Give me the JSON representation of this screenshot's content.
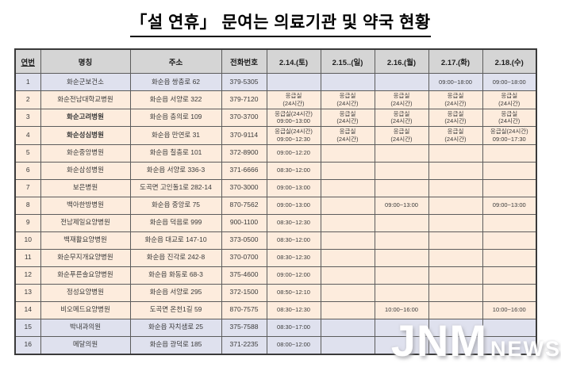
{
  "title": "「설 연휴」 문여는 의료기관 및 약국 현황",
  "watermark": {
    "main": "JNM",
    "sub": "NEWS"
  },
  "colors": {
    "header_bg": "#d5d5d5",
    "blue_row_bg": "#dfe1ee",
    "peach_row_bg": "#fdecdd",
    "border": "#5c5c5c"
  },
  "table": {
    "headers": [
      "연번",
      "명칭",
      "주소",
      "전화번호",
      "2.14.(토)",
      "2.15..(일)",
      "2.16.(월)",
      "2.17.(화)",
      "2.18.(수)"
    ],
    "rows": [
      {
        "no": "1",
        "name": "화순군보건소",
        "bold": false,
        "tone": "blue",
        "address": "화순읍 쌍충로 62",
        "phone": "379-5305",
        "schedule": [
          "",
          "",
          "",
          "09:00~18:00",
          "09:00~18:00"
        ]
      },
      {
        "no": "2",
        "name": "화순전남대학교병원",
        "bold": false,
        "tone": "peach",
        "address": "화순읍 서양로 322",
        "phone": "379-7120",
        "schedule": [
          "응급실\n(24시간)",
          "응급실\n(24시간)",
          "응급실\n(24시간)",
          "응급실\n(24시간)",
          "응급실\n(24시간)"
        ]
      },
      {
        "no": "3",
        "name": "화순고려병원",
        "bold": true,
        "tone": "peach",
        "address": "화순읍 충의로 109",
        "phone": "370-3700",
        "schedule": [
          "응급실(24시간)\n09:00~13:00",
          "응급실\n(24시간)",
          "응급실\n(24시간)",
          "응급실\n(24시간)",
          "응급실\n(24시간)"
        ]
      },
      {
        "no": "4",
        "name": "화순성심병원",
        "bold": true,
        "tone": "peach",
        "address": "화순읍 만연로 31",
        "phone": "370-9114",
        "schedule": [
          "응급실(24시간)\n09:00~12:30",
          "응급실\n(24시간)",
          "응급실\n(24시간)",
          "응급실\n(24시간)",
          "응급실(24시간)\n09:00~17:30"
        ]
      },
      {
        "no": "5",
        "name": "화순중앙병원",
        "bold": false,
        "tone": "peach",
        "address": "화순읍 칠충로 101",
        "phone": "372-8900",
        "schedule": [
          "09:00~12:20",
          "",
          "",
          "",
          ""
        ]
      },
      {
        "no": "6",
        "name": "화순삼성병원",
        "bold": false,
        "tone": "peach",
        "address": "화순읍 서양로 336-3",
        "phone": "371-6666",
        "schedule": [
          "08:30~12:00",
          "",
          "",
          "",
          ""
        ]
      },
      {
        "no": "7",
        "name": "보은병원",
        "bold": false,
        "tone": "peach",
        "address": "도곡면 고인돌1로 282-14",
        "phone": "370-3000",
        "schedule": [
          "09:00~13:00",
          "",
          "",
          "",
          ""
        ]
      },
      {
        "no": "8",
        "name": "백아한방병원",
        "bold": false,
        "tone": "peach",
        "address": "화순읍 중앙로 75",
        "phone": "870-7562",
        "schedule": [
          "09:00~13:00",
          "",
          "09:00~13:00",
          "",
          "09:00~13:00"
        ]
      },
      {
        "no": "9",
        "name": "전남제일요양병원",
        "bold": false,
        "tone": "peach",
        "address": "화순읍 덕음로 999",
        "phone": "900-1100",
        "schedule": [
          "08:30~12:30",
          "",
          "",
          "",
          ""
        ]
      },
      {
        "no": "10",
        "name": "백재활요양병원",
        "bold": false,
        "tone": "peach",
        "address": "화순읍 대교로 147-10",
        "phone": "373-0500",
        "schedule": [
          "08:30~12:00",
          "",
          "",
          "",
          ""
        ]
      },
      {
        "no": "11",
        "name": "화순무지개요양병원",
        "bold": false,
        "tone": "peach",
        "address": "화순읍 진각로 242-8",
        "phone": "370-0700",
        "schedule": [
          "08:30~12:30",
          "",
          "",
          "",
          ""
        ]
      },
      {
        "no": "12",
        "name": "화순푸른솔요양병원",
        "bold": false,
        "tone": "peach",
        "address": "화순읍 화동로 68-3",
        "phone": "375-4600",
        "schedule": [
          "09:00~12:00",
          "",
          "",
          "",
          ""
        ]
      },
      {
        "no": "13",
        "name": "정성요양병원",
        "bold": false,
        "tone": "peach",
        "address": "화순읍 서양로 295",
        "phone": "372-1500",
        "schedule": [
          "08:50~12:10",
          "",
          "",
          "",
          ""
        ]
      },
      {
        "no": "14",
        "name": "비오메드요양병원",
        "bold": false,
        "tone": "peach",
        "address": "도곡면 온천1길 59",
        "phone": "870-7575",
        "schedule": [
          "08:30~12:30",
          "",
          "10:00~16:00",
          "",
          "10:00~16:00"
        ]
      },
      {
        "no": "15",
        "name": "박내과의원",
        "bold": false,
        "tone": "blue",
        "address": "화순읍 자치샘로 25",
        "phone": "375-7588",
        "schedule": [
          "08:30~17:00",
          "",
          "",
          "",
          ""
        ]
      },
      {
        "no": "16",
        "name": "메달의원",
        "bold": false,
        "tone": "blue",
        "address": "화순읍 광덕로 185",
        "phone": "371-2235",
        "schedule": [
          "08:00~12:00",
          "",
          "",
          "",
          ""
        ]
      }
    ]
  }
}
